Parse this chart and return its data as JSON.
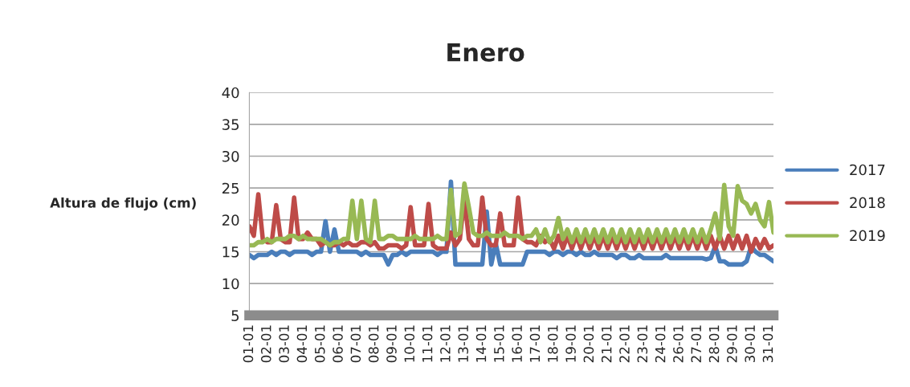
{
  "chart_data": {
    "type": "line",
    "title": "Enero",
    "ylabel": "Altura de flujo (cm)",
    "ylim": [
      5,
      40
    ],
    "yticks": [
      5,
      10,
      15,
      20,
      25,
      30,
      35,
      40
    ],
    "categories": [
      "01-01",
      null,
      null,
      null,
      "02-01",
      null,
      null,
      null,
      "03-01",
      null,
      null,
      null,
      "04-01",
      null,
      null,
      null,
      "05-01",
      null,
      null,
      null,
      "06-01",
      null,
      null,
      null,
      "07-01",
      null,
      null,
      null,
      "08-01",
      null,
      null,
      null,
      "09-01",
      null,
      null,
      null,
      "10-01",
      null,
      null,
      null,
      "11-01",
      null,
      null,
      null,
      "12-01",
      null,
      null,
      null,
      "13-01",
      null,
      null,
      null,
      "14-01",
      null,
      null,
      null,
      "15-01",
      null,
      null,
      null,
      "16-01",
      null,
      null,
      null,
      "17-01",
      null,
      null,
      null,
      "18-01",
      null,
      null,
      null,
      "19-01",
      null,
      null,
      null,
      "20-01",
      null,
      null,
      null,
      "21-01",
      null,
      null,
      null,
      "22-01",
      null,
      null,
      null,
      "23-01",
      null,
      null,
      null,
      "24-01",
      null,
      null,
      null,
      "26-01",
      null,
      null,
      null,
      "27-01",
      null,
      null,
      null,
      "28-01",
      null,
      null,
      null,
      "29-01",
      null,
      null,
      null,
      "30-01",
      null,
      null,
      null,
      "31-01",
      null
    ],
    "grid": "y",
    "legend": "right",
    "marker": "none",
    "line_style": "solid",
    "series": [
      {
        "name": "2017",
        "color": "#4a7ebb",
        "values": [
          14.5,
          14,
          14.5,
          14.5,
          14.5,
          15,
          14.5,
          15,
          15,
          14.5,
          15,
          15,
          15,
          15,
          14.5,
          15,
          15,
          19.8,
          15,
          18.5,
          15,
          15,
          15,
          15,
          15,
          14.5,
          15,
          14.5,
          14.5,
          14.5,
          14.5,
          13,
          14.5,
          14.5,
          15,
          14.5,
          15,
          15,
          15,
          15,
          15,
          15,
          14.5,
          15,
          15,
          26,
          13,
          13,
          13,
          13,
          13,
          13,
          13,
          21.3,
          13,
          16.3,
          13,
          13,
          13,
          13,
          13,
          13,
          15,
          15,
          15,
          15,
          15,
          14.5,
          15,
          15,
          14.5,
          15,
          15,
          14.5,
          15,
          14.5,
          14.5,
          15,
          14.5,
          14.5,
          14.5,
          14.5,
          14,
          14.5,
          14.5,
          14,
          14,
          14.5,
          14,
          14,
          14,
          14,
          14,
          14.5,
          14,
          14,
          14,
          14,
          14,
          14,
          14,
          14,
          13.8,
          14,
          15.9,
          13.5,
          13.5,
          13,
          13,
          13,
          13,
          13.5,
          15.8,
          15,
          14.5,
          14.5,
          14,
          13.5
        ]
      },
      {
        "name": "2018",
        "color": "#be4b48",
        "values": [
          19,
          17.5,
          24,
          17,
          16.5,
          16.5,
          22.3,
          17,
          16.5,
          16.5,
          23.5,
          17,
          17,
          18,
          17,
          17,
          16,
          16.5,
          16,
          16,
          16.5,
          16,
          16.5,
          16,
          16,
          16.5,
          16.5,
          16,
          16.5,
          15.5,
          15.5,
          16,
          16,
          16,
          15.5,
          16,
          22,
          16,
          16,
          16,
          22.5,
          16,
          15.5,
          15.5,
          15.5,
          18,
          16,
          17,
          23.5,
          17,
          16,
          16,
          23.5,
          17,
          16,
          16,
          21,
          16,
          16,
          16,
          23.5,
          17,
          16.5,
          16.5,
          16,
          17.5,
          16.5,
          17,
          15.5,
          17.5,
          15.5,
          17.5,
          15.5,
          17.5,
          15.5,
          17.5,
          15.5,
          17.5,
          15.5,
          17.5,
          15.5,
          17.5,
          15.5,
          17.5,
          15.5,
          17.5,
          15.5,
          17.5,
          15.5,
          17.5,
          15.5,
          17.5,
          15.5,
          17.5,
          15.5,
          17.5,
          15.5,
          17.5,
          15.5,
          17.5,
          15.5,
          17.5,
          15.5,
          17.5,
          15.5,
          17.5,
          15.5,
          17.5,
          15.5,
          17.5,
          15.5,
          17.5,
          15,
          17,
          15.5,
          17,
          15.5,
          16
        ]
      },
      {
        "name": "2019",
        "color": "#98b954",
        "values": [
          16,
          16,
          16.5,
          16.5,
          17,
          16.5,
          17,
          17,
          17,
          17.5,
          17.5,
          17,
          17.5,
          17,
          17,
          17,
          17,
          16.5,
          16,
          16.5,
          16.5,
          17,
          17,
          23,
          17,
          23,
          17,
          16.5,
          23,
          17,
          17,
          17.5,
          17.5,
          17,
          17,
          17,
          17,
          17.5,
          17,
          17,
          17,
          17,
          17.5,
          17,
          17,
          24.7,
          17.5,
          18,
          25.7,
          22,
          18,
          17.5,
          17.5,
          18,
          17.5,
          17.5,
          17.5,
          18,
          17.5,
          17.5,
          17.5,
          17,
          17.5,
          17.5,
          18.5,
          16.5,
          18.5,
          16.5,
          17.5,
          20.3,
          17,
          18.5,
          16.5,
          18.5,
          16.5,
          18.5,
          16.5,
          18.5,
          16.5,
          18.5,
          16.5,
          18.5,
          16.5,
          18.5,
          16.5,
          18.5,
          16.5,
          18.5,
          16.5,
          18.5,
          16.5,
          18.5,
          16.5,
          18.5,
          16.5,
          18.5,
          16.5,
          18.5,
          16.5,
          18.5,
          16.5,
          18.5,
          16.5,
          18.5,
          21,
          17,
          25.5,
          19,
          17.5,
          25.3,
          23,
          22.5,
          21,
          22.5,
          20,
          19,
          22.8,
          18
        ]
      }
    ]
  }
}
